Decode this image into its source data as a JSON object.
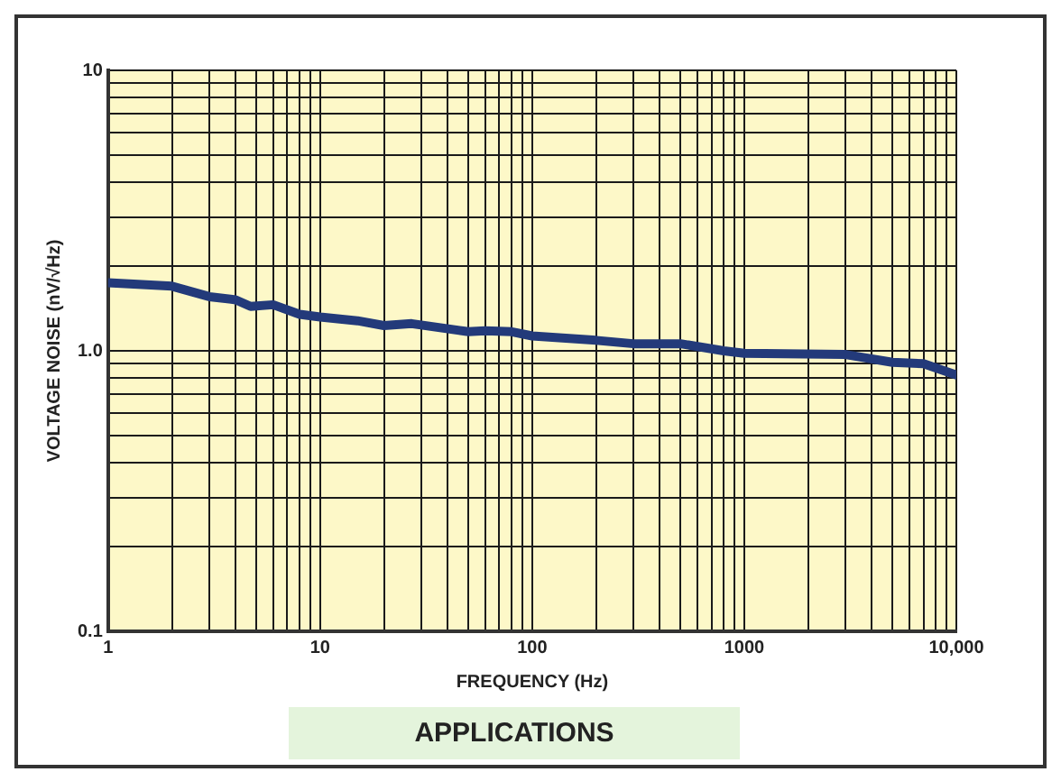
{
  "chart_data": {
    "type": "line",
    "xlabel": "FREQUENCY (Hz)",
    "ylabel": "VOLTAGE NOISE (nV/√Hz)",
    "annotations": [
      "APPLICATIONS"
    ],
    "x": [
      1,
      2,
      3,
      4,
      4.7,
      6,
      8,
      10,
      15,
      20,
      27,
      50,
      60,
      80,
      100,
      200,
      300,
      500,
      800,
      1000,
      3000,
      5000,
      7000,
      10000
    ],
    "series": [
      {
        "color": "#233a7a",
        "values": [
          1.75,
          1.7,
          1.56,
          1.52,
          1.44,
          1.46,
          1.35,
          1.32,
          1.28,
          1.23,
          1.25,
          1.17,
          1.18,
          1.17,
          1.13,
          1.09,
          1.06,
          1.06,
          1.0,
          0.98,
          0.97,
          0.91,
          0.9,
          0.82
        ]
      }
    ],
    "log": "xy",
    "xlim": [
      1,
      10000
    ],
    "ylim": [
      0.1,
      10
    ],
    "xticks": [
      1,
      {
        "value": 2,
        "label": null
      },
      {
        "value": 3,
        "label": null
      },
      {
        "value": 4,
        "label": null
      },
      {
        "value": 5,
        "label": null
      },
      {
        "value": 6,
        "label": null
      },
      {
        "value": 7,
        "label": null
      },
      {
        "value": 8,
        "label": null
      },
      {
        "value": 9,
        "label": null
      },
      10,
      {
        "value": 20,
        "label": null
      },
      {
        "value": 30,
        "label": null
      },
      {
        "value": 40,
        "label": null
      },
      {
        "value": 50,
        "label": null
      },
      {
        "value": 60,
        "label": null
      },
      {
        "value": 70,
        "label": null
      },
      {
        "value": 80,
        "label": null
      },
      {
        "value": 90,
        "label": null
      },
      100,
      {
        "value": 200,
        "label": null
      },
      {
        "value": 300,
        "label": null
      },
      {
        "value": 400,
        "label": null
      },
      {
        "value": 500,
        "label": null
      },
      {
        "value": 600,
        "label": null
      },
      {
        "value": 700,
        "label": null
      },
      {
        "value": 800,
        "label": null
      },
      {
        "value": 900,
        "label": null
      },
      1000,
      {
        "value": 2000,
        "label": null
      },
      {
        "value": 3000,
        "label": null
      },
      {
        "value": 4000,
        "label": null
      },
      {
        "value": 5000,
        "label": null
      },
      {
        "value": 6000,
        "label": null
      },
      {
        "value": 7000,
        "label": null
      },
      {
        "value": 8000,
        "label": null
      },
      {
        "value": 9000,
        "label": null
      },
      {
        "value": 10000,
        "label": "10,000"
      }
    ],
    "yticks": [
      0.1,
      {
        "value": 0.2,
        "label": null
      },
      {
        "value": 0.3,
        "label": null
      },
      {
        "value": 0.4,
        "label": null
      },
      {
        "value": 0.5,
        "label": null
      },
      {
        "value": 0.6,
        "label": null
      },
      {
        "value": 0.7,
        "label": null
      },
      {
        "value": 0.8,
        "label": null
      },
      {
        "value": 0.9,
        "label": null
      },
      {
        "value": 1,
        "label": "1.0"
      },
      {
        "value": 2,
        "label": null
      },
      {
        "value": 3,
        "label": null
      },
      {
        "value": 4,
        "label": null
      },
      {
        "value": 5,
        "label": null
      },
      {
        "value": 6,
        "label": null
      },
      {
        "value": 7,
        "label": null
      },
      {
        "value": 8,
        "label": null
      },
      {
        "value": 9,
        "label": null
      },
      10
    ],
    "grid": true,
    "legend": false,
    "marker": "none",
    "line_style": "solid"
  }
}
